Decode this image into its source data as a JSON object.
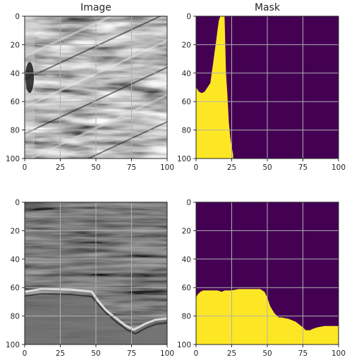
{
  "figure": {
    "colors": {
      "mask_bg": "#440154",
      "mask_fg": "#fde725",
      "grid": "#b0b0b0",
      "image_dark": "#2e2e2e",
      "image_light": "#d8d8d8"
    }
  },
  "chart_data": [
    {
      "type": "heatmap",
      "title": "Image",
      "xlim": [
        0,
        100
      ],
      "ylim": [
        0,
        100
      ],
      "xticks": [
        "0",
        "25",
        "50",
        "75",
        "100"
      ],
      "yticks": [
        "0",
        "20",
        "40",
        "60",
        "80",
        "100"
      ],
      "grid": true,
      "content": "grayscale seismic image, top row"
    },
    {
      "type": "heatmap",
      "title": "Mask",
      "xlim": [
        0,
        100
      ],
      "ylim": [
        0,
        100
      ],
      "xticks": [
        "0",
        "25",
        "50",
        "75",
        "100"
      ],
      "yticks": [
        "0",
        "20",
        "40",
        "60",
        "80",
        "100"
      ],
      "grid": true,
      "boundary": {
        "x": [
          0,
          0,
          2,
          4,
          6,
          8,
          10,
          11,
          12,
          13,
          14,
          15,
          16,
          17,
          18,
          19,
          20,
          21,
          22,
          23,
          24,
          25,
          26,
          26,
          0
        ],
        "y": [
          100,
          50,
          53,
          54,
          53,
          50,
          47,
          40,
          33,
          25,
          18,
          10,
          3,
          0,
          0,
          0,
          0,
          40,
          55,
          75,
          85,
          92,
          97,
          100,
          100
        ]
      }
    },
    {
      "type": "heatmap",
      "title": "",
      "xlim": [
        0,
        100
      ],
      "ylim": [
        0,
        100
      ],
      "xticks": [
        "0",
        "25",
        "50",
        "75",
        "100"
      ],
      "yticks": [
        "0",
        "20",
        "40",
        "60",
        "80",
        "100"
      ],
      "grid": true,
      "content": "grayscale seismic image, bottom row"
    },
    {
      "type": "heatmap",
      "title": "",
      "xlim": [
        0,
        100
      ],
      "ylim": [
        0,
        100
      ],
      "xticks": [
        "0",
        "25",
        "50",
        "75",
        "100"
      ],
      "yticks": [
        "0",
        "20",
        "40",
        "60",
        "80",
        "100"
      ],
      "grid": true,
      "boundary": {
        "x": [
          0,
          0,
          1,
          2,
          3,
          5,
          10,
          15,
          18,
          20,
          25,
          30,
          35,
          40,
          45,
          48,
          50,
          52,
          55,
          58,
          60,
          65,
          70,
          75,
          77,
          80,
          82,
          85,
          90,
          95,
          100,
          100
        ],
        "y": [
          100,
          67,
          65,
          64,
          63,
          62,
          62,
          62,
          63,
          62,
          62,
          61,
          61,
          61,
          61,
          63,
          67,
          73,
          78,
          81,
          81,
          82,
          84,
          88,
          90,
          90,
          89,
          88,
          87,
          87,
          87,
          100
        ]
      }
    }
  ]
}
